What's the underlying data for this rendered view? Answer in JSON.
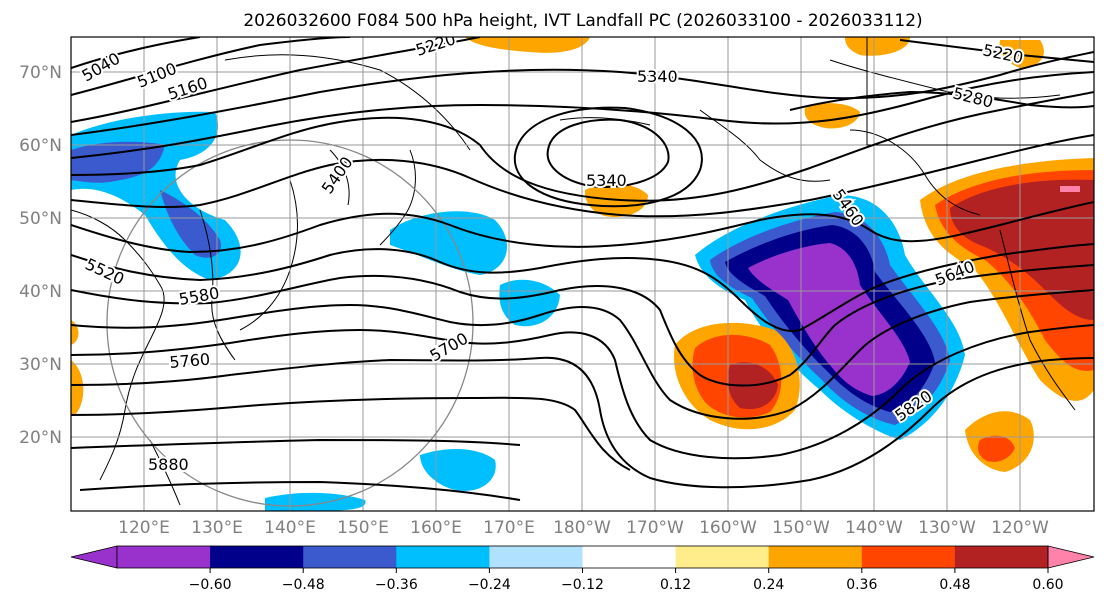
{
  "title": "2026032600 F084 500 hPa height, IVT Landfall PC (2026033100 - 2026033112)",
  "lat_labels": [
    "70°N",
    "60°N",
    "50°N",
    "40°N",
    "30°N",
    "20°N"
  ],
  "lon_labels": [
    "120°E",
    "130°E",
    "140°E",
    "150°E",
    "160°E",
    "170°E",
    "180°W",
    "170°W",
    "160°W",
    "150°W",
    "140°W",
    "130°W",
    "120°W"
  ],
  "contour_labels": [
    "5040",
    "5100",
    "5160",
    "5220",
    "5220",
    "5340",
    "5280",
    "5340",
    "5400",
    "5460",
    "5520",
    "5580",
    "5640",
    "5700",
    "5760",
    "5820",
    "5880"
  ],
  "colorbar": {
    "ticks": [
      "−0.60",
      "−0.48",
      "−0.36",
      "−0.24",
      "−0.12",
      "0.12",
      "0.24",
      "0.36",
      "0.48",
      "0.60"
    ],
    "colors": [
      "#9932cc",
      "#00008b",
      "#3a5acd",
      "#00bfff",
      "#b0e2ff",
      "#ffffff",
      "#ffec8b",
      "#ffa500",
      "#ff4500",
      "#b22222"
    ],
    "under_color": "#9932cc",
    "over_color": "#ff82ab"
  }
}
